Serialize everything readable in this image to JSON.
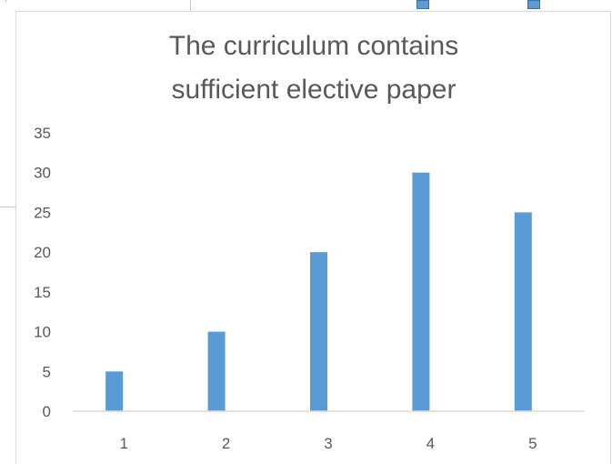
{
  "chart_data": {
    "type": "bar",
    "title_lines": [
      "The curriculum contains",
      "sufficient elective paper"
    ],
    "categories": [
      "1",
      "2",
      "3",
      "4",
      "5"
    ],
    "values": [
      5,
      10,
      20,
      30,
      25
    ],
    "ylim": [
      0,
      35
    ],
    "yticks": [
      "0",
      "5",
      "10",
      "15",
      "20",
      "25",
      "30",
      "35"
    ],
    "grid": false,
    "bar_color": "#5b9bd5"
  }
}
